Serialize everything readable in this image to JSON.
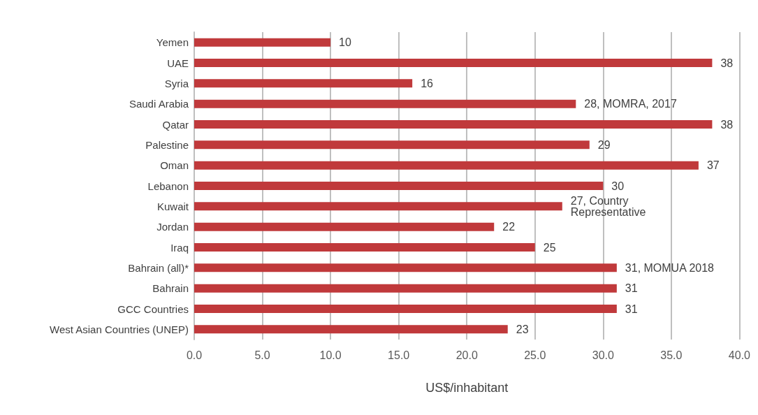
{
  "chart_data": {
    "type": "bar",
    "orientation": "horizontal",
    "xlabel": "US$/inhabitant",
    "categories": [
      "Yemen",
      "UAE",
      "Syria",
      "Saudi Arabia",
      "Qatar",
      "Palestine",
      "Oman",
      "Lebanon",
      "Kuwait",
      "Jordan",
      "Iraq",
      "Bahrain (all)*",
      "Bahrain",
      "GCC Countries",
      "West Asian Countries (UNEP)"
    ],
    "values": [
      10,
      38,
      16,
      28,
      38,
      29,
      37,
      30,
      27,
      22,
      25,
      31,
      31,
      31,
      23
    ],
    "value_labels": [
      "10",
      "38",
      "16",
      "28, MOMRA, 2017",
      "38",
      "29",
      "37",
      "30",
      "27, Country Representative",
      "22",
      "25",
      "31, MOMUA 2018",
      "31",
      "31",
      "23"
    ],
    "color": "#c0393b",
    "xlim": [
      0,
      40
    ],
    "xticks": [
      {
        "value": 0,
        "label": "0.0"
      },
      {
        "value": 5,
        "label": "5.0"
      },
      {
        "value": 10,
        "label": "10.0"
      },
      {
        "value": 15,
        "label": "15.0"
      },
      {
        "value": 20,
        "label": "20.0"
      },
      {
        "value": 25,
        "label": "25.0"
      },
      {
        "value": 30,
        "label": "30.0"
      },
      {
        "value": 35,
        "label": "35.0"
      },
      {
        "value": 40,
        "label": "40.0"
      }
    ],
    "grid": "x"
  }
}
